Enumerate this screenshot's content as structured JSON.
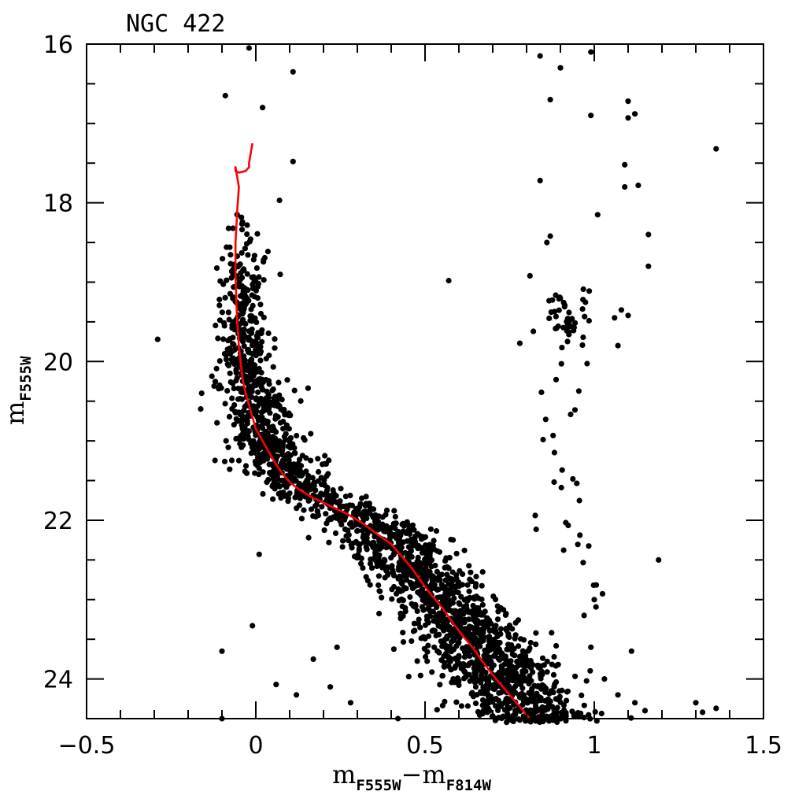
{
  "chart_data": {
    "type": "scatter",
    "title": "NGC 422",
    "xlabel": {
      "base": "m",
      "sub": "F555W",
      "sep": "−",
      "base2": "m",
      "sub2": "F814W"
    },
    "ylabel": {
      "base": "m",
      "sub": "F555W"
    },
    "xlim": [
      -0.5,
      1.5
    ],
    "ylim": [
      24.5,
      16
    ],
    "y_inverted": true,
    "x_ticks": [
      -0.5,
      0,
      0.5,
      1,
      1.5
    ],
    "x_tick_labels": [
      "−0.5",
      "0",
      "0.5",
      "1",
      "1.5"
    ],
    "y_ticks": [
      16,
      18,
      20,
      22,
      24
    ],
    "y_tick_labels": [
      "16",
      "18",
      "20",
      "22",
      "24"
    ],
    "grid": false,
    "colors": {
      "points": "#000000",
      "isochrone": "#ff0000"
    },
    "isochrone": {
      "x": [
        -0.01,
        -0.02,
        -0.02,
        -0.03,
        -0.05,
        -0.06,
        -0.06,
        -0.05,
        -0.055,
        -0.06,
        -0.06,
        -0.058,
        -0.055,
        -0.05,
        -0.045,
        -0.04,
        -0.03,
        -0.02,
        -0.01,
        0.0,
        0.02,
        0.04,
        0.06,
        0.08,
        0.1,
        0.13,
        0.17,
        0.22,
        0.27,
        0.32,
        0.36,
        0.4,
        0.43,
        0.46,
        0.49,
        0.52,
        0.55,
        0.58,
        0.61,
        0.64,
        0.67,
        0.7,
        0.73,
        0.76,
        0.79,
        0.81
      ],
      "y": [
        17.25,
        17.5,
        17.55,
        17.6,
        17.62,
        17.6,
        17.55,
        17.8,
        18.1,
        18.5,
        18.9,
        19.2,
        19.5,
        19.8,
        20.0,
        20.2,
        20.4,
        20.55,
        20.7,
        20.85,
        21.0,
        21.15,
        21.3,
        21.42,
        21.52,
        21.62,
        21.72,
        21.82,
        21.92,
        22.05,
        22.18,
        22.3,
        22.45,
        22.6,
        22.78,
        22.95,
        23.1,
        23.28,
        23.45,
        23.6,
        23.78,
        23.95,
        24.1,
        24.25,
        24.4,
        24.5
      ]
    },
    "outliers": [
      {
        "x": -0.02,
        "y": 16.05
      },
      {
        "x": 0.11,
        "y": 16.35
      },
      {
        "x": -0.09,
        "y": 16.65
      },
      {
        "x": 0.02,
        "y": 16.8
      },
      {
        "x": 0.11,
        "y": 17.48
      },
      {
        "x": 0.07,
        "y": 17.97
      },
      {
        "x": -0.29,
        "y": 19.72
      },
      {
        "x": -0.16,
        "y": 20.4
      },
      {
        "x": 0.57,
        "y": 18.98
      },
      {
        "x": 0.01,
        "y": 22.43
      },
      {
        "x": -0.01,
        "y": 23.33
      },
      {
        "x": -0.1,
        "y": 23.65
      },
      {
        "x": 0.06,
        "y": 24.07
      },
      {
        "x": 0.12,
        "y": 24.2
      },
      {
        "x": -0.1,
        "y": 24.5
      },
      {
        "x": 0.84,
        "y": 16.15
      },
      {
        "x": 0.99,
        "y": 16.1
      },
      {
        "x": 0.9,
        "y": 16.3
      },
      {
        "x": 0.87,
        "y": 16.7
      },
      {
        "x": 0.99,
        "y": 16.9
      },
      {
        "x": 1.1,
        "y": 16.72
      },
      {
        "x": 1.1,
        "y": 16.93
      },
      {
        "x": 1.12,
        "y": 16.88
      },
      {
        "x": 1.36,
        "y": 17.32
      },
      {
        "x": 0.84,
        "y": 17.72
      },
      {
        "x": 1.09,
        "y": 17.52
      },
      {
        "x": 1.09,
        "y": 17.8
      },
      {
        "x": 1.13,
        "y": 17.78
      },
      {
        "x": 1.01,
        "y": 18.15
      },
      {
        "x": 1.16,
        "y": 18.4
      },
      {
        "x": 0.86,
        "y": 18.5
      },
      {
        "x": 0.87,
        "y": 18.42
      },
      {
        "x": 1.16,
        "y": 18.8
      },
      {
        "x": 0.81,
        "y": 18.92
      },
      {
        "x": 1.06,
        "y": 19.45
      },
      {
        "x": 1.08,
        "y": 19.35
      },
      {
        "x": 1.1,
        "y": 19.42
      },
      {
        "x": 0.78,
        "y": 19.77
      },
      {
        "x": 1.07,
        "y": 19.8
      },
      {
        "x": 0.82,
        "y": 19.62
      },
      {
        "x": 1.19,
        "y": 22.5
      },
      {
        "x": 1.11,
        "y": 23.65
      },
      {
        "x": 1.3,
        "y": 24.3
      },
      {
        "x": 1.36,
        "y": 24.37
      },
      {
        "x": 1.32,
        "y": 24.42
      },
      {
        "x": 1.0,
        "y": 23.0
      },
      {
        "x": 0.97,
        "y": 23.2
      },
      {
        "x": 0.99,
        "y": 23.6
      },
      {
        "x": 1.03,
        "y": 24.0
      },
      {
        "x": 1.07,
        "y": 24.2
      },
      {
        "x": 1.12,
        "y": 24.3
      },
      {
        "x": 1.15,
        "y": 24.4
      },
      {
        "x": 0.22,
        "y": 24.1
      },
      {
        "x": 0.24,
        "y": 23.6
      },
      {
        "x": 0.17,
        "y": 23.75
      },
      {
        "x": 0.28,
        "y": 24.3
      },
      {
        "x": 0.42,
        "y": 24.5
      }
    ],
    "giant_clump": {
      "x_center": 0.92,
      "y_center": 19.45,
      "x_spread": 0.05,
      "y_spread": 0.3,
      "count": 48
    },
    "sub_sequence": {
      "x": [
        0.84,
        0.85,
        0.86,
        0.87,
        0.88,
        0.89,
        0.9,
        0.91,
        0.92,
        0.93,
        0.95,
        0.97,
        0.99,
        1.0
      ],
      "y": [
        20.3,
        20.5,
        20.7,
        20.9,
        21.2,
        21.4,
        21.6,
        21.8,
        22.0,
        22.2,
        22.4,
        22.6,
        22.8,
        23.0
      ],
      "spread": 0.05
    },
    "main_sequence_scatter": {
      "count": 2300,
      "color_sigma": 0.065,
      "mag_range": [
        18.1,
        24.6
      ],
      "blue_offset": 0.015
    }
  }
}
